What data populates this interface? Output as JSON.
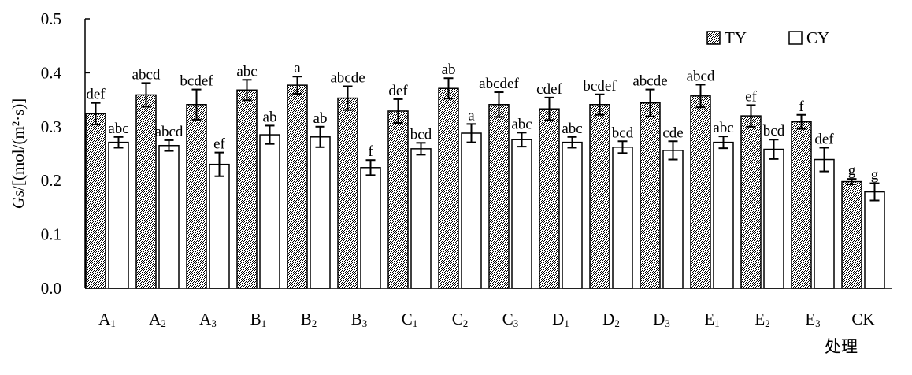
{
  "chart_data": {
    "type": "bar",
    "title": "",
    "ylabel_italic": "Gs",
    "ylabel_rest": "/[(mol/(m²·s)]",
    "xlabel": "处理",
    "ylim": [
      0,
      0.5
    ],
    "yticks": [
      "0.0",
      "0.1",
      "0.2",
      "0.3",
      "0.4",
      "0.5"
    ],
    "categories": [
      {
        "base": "A",
        "sub": "1"
      },
      {
        "base": "A",
        "sub": "2"
      },
      {
        "base": "A",
        "sub": "3"
      },
      {
        "base": "B",
        "sub": "1"
      },
      {
        "base": "B",
        "sub": "2"
      },
      {
        "base": "B",
        "sub": "3"
      },
      {
        "base": "C",
        "sub": "1"
      },
      {
        "base": "C",
        "sub": "2"
      },
      {
        "base": "C",
        "sub": "3"
      },
      {
        "base": "D",
        "sub": "1"
      },
      {
        "base": "D",
        "sub": "2"
      },
      {
        "base": "D",
        "sub": "3"
      },
      {
        "base": "E",
        "sub": "1"
      },
      {
        "base": "E",
        "sub": "2"
      },
      {
        "base": "E",
        "sub": "3"
      },
      {
        "base": "CK",
        "sub": ""
      }
    ],
    "series": [
      {
        "name": "TY",
        "pattern": "hatched",
        "values": [
          0.324,
          0.359,
          0.341,
          0.368,
          0.377,
          0.353,
          0.329,
          0.371,
          0.341,
          0.333,
          0.341,
          0.344,
          0.357,
          0.32,
          0.309,
          0.198
        ],
        "errors": [
          0.02,
          0.022,
          0.028,
          0.019,
          0.016,
          0.022,
          0.022,
          0.019,
          0.023,
          0.021,
          0.019,
          0.025,
          0.021,
          0.02,
          0.013,
          0.005
        ],
        "sig": [
          "def",
          "abcd",
          "bcdef",
          "abc",
          "a",
          "abcde",
          "def",
          "ab",
          "abcdef",
          "cdef",
          "bcdef",
          "abcde",
          "abcd",
          "ef",
          "f",
          "g"
        ]
      },
      {
        "name": "CY",
        "pattern": "open",
        "values": [
          0.271,
          0.265,
          0.23,
          0.285,
          0.281,
          0.224,
          0.259,
          0.288,
          0.276,
          0.271,
          0.262,
          0.256,
          0.271,
          0.258,
          0.239,
          0.179
        ],
        "errors": [
          0.01,
          0.01,
          0.022,
          0.017,
          0.019,
          0.014,
          0.011,
          0.017,
          0.013,
          0.01,
          0.011,
          0.017,
          0.011,
          0.018,
          0.022,
          0.016
        ],
        "sig": [
          "abc",
          "abcd",
          "ef",
          "ab",
          "ab",
          "f",
          "bcd",
          "a",
          "abc",
          "abc",
          "bcd",
          "cde",
          "abc",
          "bcd",
          "def",
          "g"
        ]
      }
    ],
    "legend": {
      "position": "top-right"
    },
    "grid": false
  }
}
